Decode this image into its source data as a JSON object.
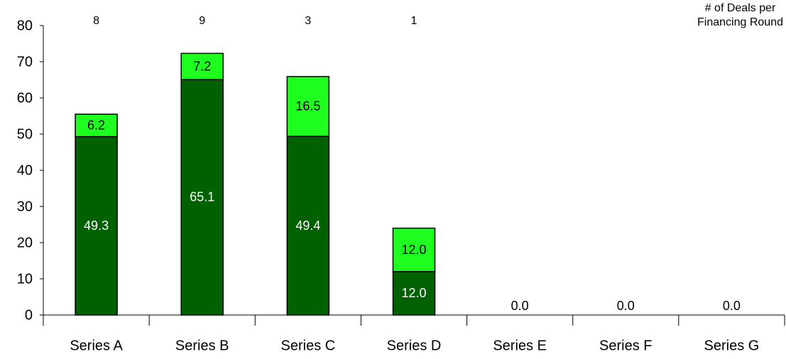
{
  "chart_data": {
    "type": "bar",
    "stacked": true,
    "categories": [
      "Series A",
      "Series B",
      "Series C",
      "Series D",
      "Series E",
      "Series F",
      "Series G"
    ],
    "series": [
      {
        "values": [
          49.3,
          65.1,
          49.4,
          12.0,
          0.0,
          0.0,
          0.0
        ]
      },
      {
        "values": [
          6.2,
          7.2,
          16.5,
          12.0,
          0.0,
          0.0,
          0.0
        ]
      }
    ],
    "bar_labels": {
      "bottom": [
        "49.3",
        "65.1",
        "49.4",
        "12.0",
        "0.0",
        "0.0",
        "0.0"
      ],
      "top": [
        "6.2",
        "7.2",
        "16.5",
        "12.0",
        null,
        null,
        null
      ]
    },
    "deal_counts": [
      "8",
      "9",
      "3",
      "1",
      "",
      "",
      ""
    ],
    "deal_counts_label_line1": "# of Deals per",
    "deal_counts_label_line2": "Financing Round",
    "y_ticks": [
      "0",
      "10",
      "20",
      "30",
      "40",
      "50",
      "60",
      "70",
      "80"
    ],
    "ylim": [
      0,
      80
    ],
    "grid": false,
    "colors": {
      "bottom": "#006100",
      "top": "#1fff1f",
      "outline": "#000000",
      "label_light": "#ffffff",
      "label_dark": "#000000"
    }
  }
}
